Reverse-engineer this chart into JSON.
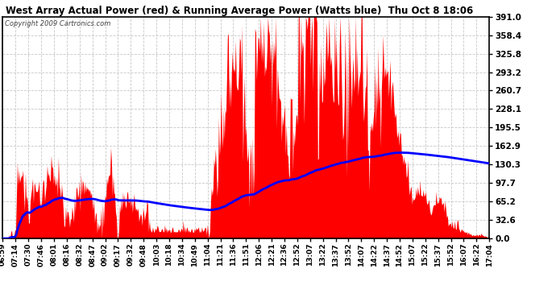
{
  "title": "West Array Actual Power (red) & Running Average Power (Watts blue)  Thu Oct 8 18:06",
  "copyright": "Copyright 2009 Cartronics.com",
  "y_ticks": [
    0.0,
    32.6,
    65.2,
    97.7,
    130.3,
    162.9,
    195.5,
    228.1,
    260.7,
    293.2,
    325.8,
    358.4,
    391.0
  ],
  "x_labels": [
    "06:59",
    "07:14",
    "07:30",
    "07:46",
    "08:01",
    "08:16",
    "08:32",
    "08:47",
    "09:02",
    "09:17",
    "09:32",
    "09:48",
    "10:03",
    "10:18",
    "10:34",
    "10:49",
    "11:04",
    "11:21",
    "11:36",
    "11:51",
    "12:06",
    "12:21",
    "12:36",
    "12:52",
    "13:07",
    "13:22",
    "13:37",
    "13:52",
    "14:07",
    "14:22",
    "14:37",
    "14:52",
    "15:07",
    "15:22",
    "15:37",
    "15:52",
    "16:07",
    "16:22",
    "17:04"
  ],
  "bg_color": "#ffffff",
  "red_color": "#ff0000",
  "blue_color": "#0000ff",
  "grid_color": "#c8c8c8",
  "title_color": "#000000",
  "ymax": 391.0,
  "ymin": 0.0,
  "n_points": 605,
  "seed": 123
}
